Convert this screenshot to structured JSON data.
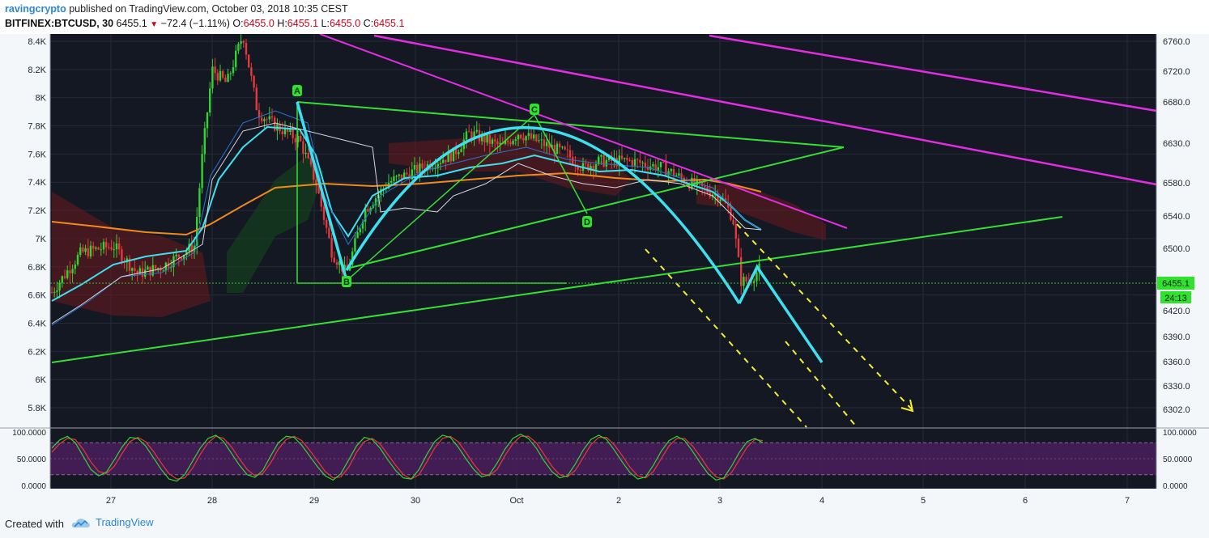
{
  "header": {
    "author": "ravingcrypto",
    "published_text": " published on TradingView.com, October 03, 2018 10:35 CEST",
    "symbol": "BITFINEX:BTCUSD, 30",
    "last_price": "6455.1",
    "change": "−72.4 (−1.11%)",
    "ohlc": {
      "o_label": "O:",
      "o": "6455.0",
      "h_label": "H:",
      "h": "6455.1",
      "l_label": "L:",
      "l": "6455.0",
      "c_label": "C:",
      "c": "6455.1"
    }
  },
  "footer": {
    "created_with": "Created with",
    "brand": "TradingView",
    "brand_icon": "tradingview-cloud-icon"
  },
  "colors": {
    "background": "#141823",
    "up": "#31d431",
    "down": "#e5383b",
    "trend_green": "#35e035",
    "trend_magenta": "#e22ee2",
    "cyan": "#3ee0f0",
    "orange": "#f08a1c",
    "yellow": "#f3ef2e",
    "stoch_fill": "#4a1f5c"
  },
  "chart_data": {
    "type": "candlestick",
    "symbol": "BITFINEX:BTCUSD",
    "interval": "30",
    "x_ticks": [
      "27",
      "28",
      "29",
      "30",
      "Oct",
      "2",
      "3",
      "4",
      "5",
      "6",
      "7"
    ],
    "left_axis": {
      "ticks": [
        "8.4K",
        "8.2K",
        "8K",
        "7.8K",
        "7.6K",
        "7.4K",
        "7.2K",
        "7K",
        "6.8K",
        "6.6K",
        "6.4K",
        "6.2K",
        "6K",
        "5.8K"
      ],
      "values": [
        8400,
        8200,
        8000,
        7800,
        7600,
        7400,
        7200,
        7000,
        6800,
        6600,
        6400,
        6200,
        6000,
        5800
      ]
    },
    "right_axis": {
      "ticks": [
        "6760.0",
        "6720.0",
        "6680.0",
        "6630.0",
        "6580.0",
        "6540.0",
        "6500.0",
        "6420.0",
        "6390.0",
        "6360.0",
        "6330.0",
        "6302.0"
      ],
      "values": [
        6760,
        6720,
        6680,
        6630,
        6580,
        6540,
        6500,
        6420,
        6390,
        6360,
        6330,
        6302
      ]
    },
    "price_label": "6455.1",
    "countdown_label": "24:13",
    "pattern_labels": [
      "A",
      "B",
      "C",
      "D"
    ],
    "stochastic": {
      "axis_ticks": [
        "100.0000",
        "50.0000",
        "0.0000"
      ],
      "right_ticks": [
        "100.0000",
        "50.0000",
        "0.0000"
      ],
      "upper_band": 80,
      "lower_band": 20,
      "k": [
        70,
        85,
        92,
        80,
        55,
        30,
        18,
        25,
        48,
        72,
        90,
        88,
        74,
        52,
        30,
        12,
        8,
        20,
        45,
        70,
        88,
        94,
        82,
        60,
        38,
        20,
        15,
        28,
        55,
        80,
        92,
        90,
        75,
        55,
        35,
        18,
        10,
        22,
        48,
        74,
        90,
        86,
        70,
        48,
        28,
        14,
        12,
        30,
        58,
        82,
        94,
        90,
        72,
        50,
        30,
        16,
        20,
        42,
        68,
        88,
        96,
        88,
        70,
        46,
        26,
        14,
        18,
        40,
        66,
        86,
        94,
        86,
        66,
        44,
        24,
        12,
        16,
        38,
        64,
        84,
        92,
        84,
        64,
        42,
        22,
        10,
        14,
        36,
        62,
        82,
        88,
        80
      ],
      "d": [
        62,
        78,
        88,
        86,
        68,
        44,
        26,
        22,
        36,
        60,
        82,
        90,
        82,
        64,
        42,
        22,
        12,
        14,
        32,
        58,
        80,
        92,
        88,
        72,
        50,
        30,
        18,
        22,
        42,
        68,
        86,
        92,
        84,
        66,
        46,
        26,
        14,
        16,
        34,
        62,
        82,
        88,
        78,
        58,
        38,
        20,
        12,
        20,
        44,
        70,
        88,
        92,
        82,
        62,
        40,
        22,
        18,
        30,
        56,
        78,
        92,
        92,
        80,
        58,
        36,
        20,
        16,
        28,
        52,
        76,
        90,
        90,
        76,
        56,
        34,
        18,
        14,
        26,
        50,
        74,
        88,
        88,
        74,
        54,
        32,
        16,
        12,
        24,
        48,
        72,
        86,
        84
      ]
    }
  }
}
